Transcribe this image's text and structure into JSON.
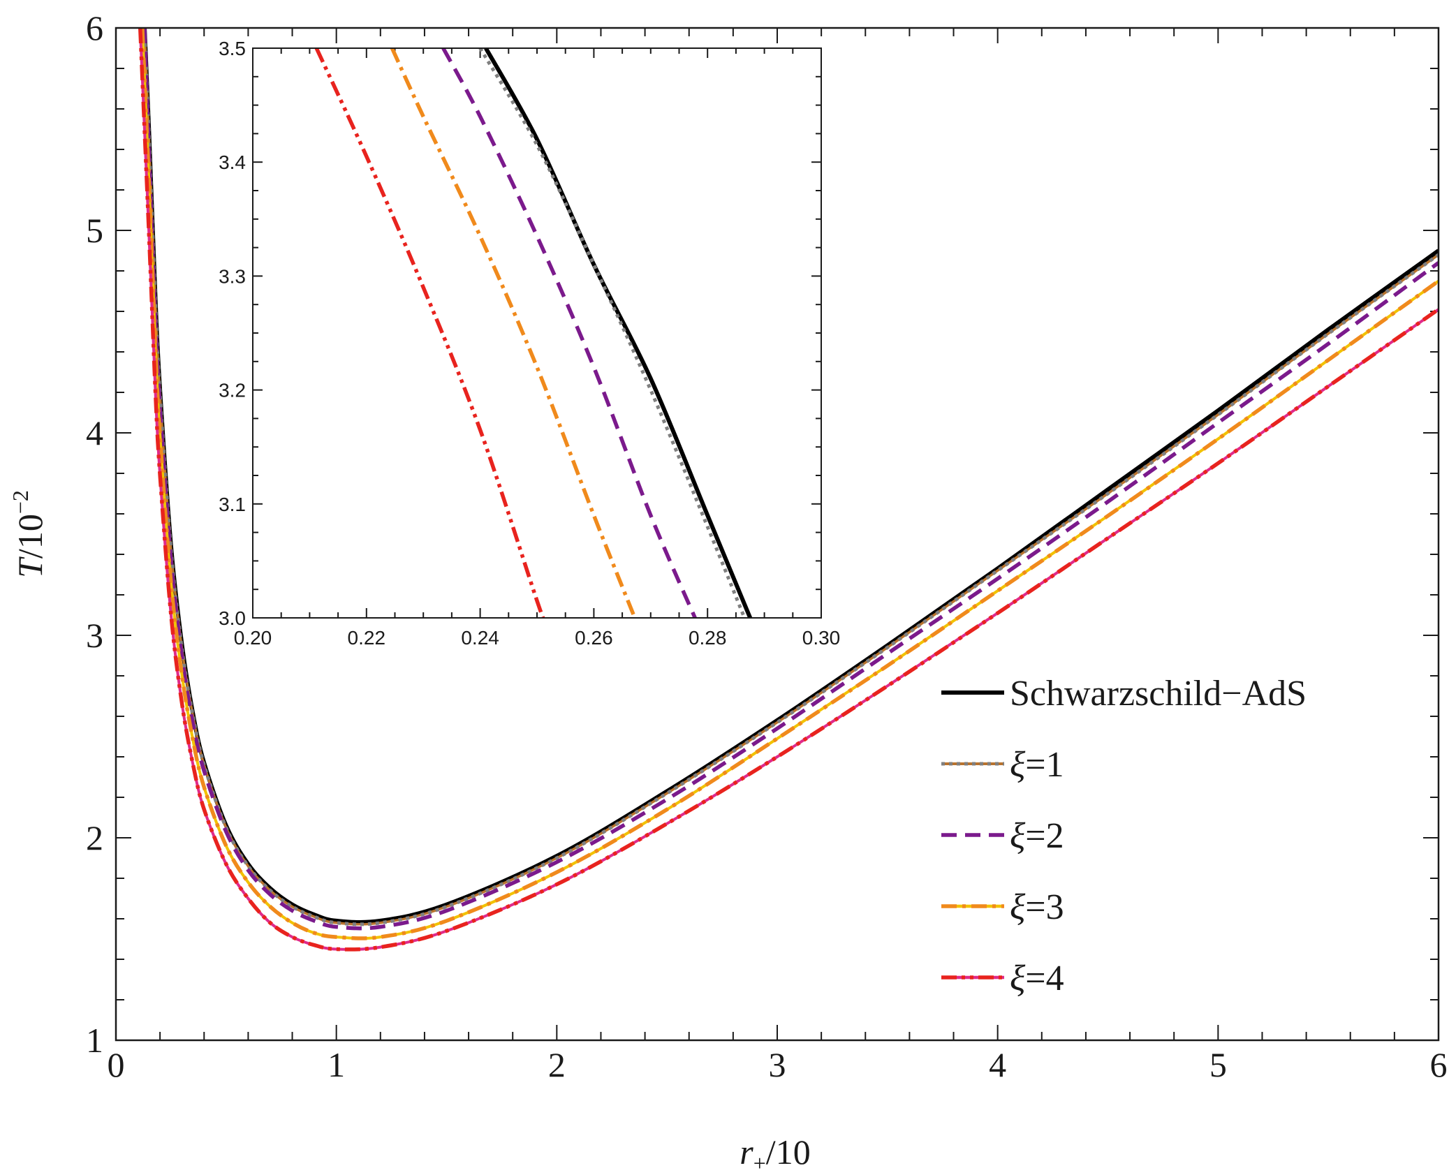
{
  "chart_data": [
    {
      "type": "line",
      "xlabel_var": "r",
      "xlabel_sub": "+",
      "xlabel_rest": "/10",
      "ylabel_var": "T",
      "ylabel_rest": "/10",
      "ylabel_exp": "−2",
      "xlim": [
        0,
        6
      ],
      "ylim": [
        1,
        6
      ],
      "xticks": [
        "0",
        "1",
        "2",
        "3",
        "4",
        "5",
        "6"
      ],
      "yticks": [
        "1",
        "2",
        "3",
        "4",
        "5",
        "6"
      ],
      "grid": false,
      "legend_position": "bottom-right",
      "series": [
        {
          "name": "Schwarzschild−AdS",
          "legend_prefix": "",
          "legend_value": "",
          "style": "solid",
          "color": "#000000",
          "x": [
            0.13,
            0.15,
            0.18,
            0.2,
            0.25,
            0.3,
            0.35,
            0.4,
            0.5,
            0.6,
            0.7,
            0.8,
            0.9,
            1.0,
            1.2,
            1.5,
            2.0,
            2.5,
            3.0,
            3.5,
            4.0,
            4.5,
            5.0,
            5.5,
            6.0
          ],
          "y": [
            6.0,
            5.49,
            4.64,
            4.21,
            3.44,
            2.95,
            2.61,
            2.37,
            2.06,
            1.87,
            1.75,
            1.67,
            1.62,
            1.59,
            1.59,
            1.67,
            1.91,
            2.23,
            2.58,
            2.95,
            3.33,
            3.72,
            4.11,
            4.51,
            4.9
          ]
        },
        {
          "name": "ξ=1",
          "legend_prefix": "ξ",
          "legend_value": "=1",
          "style": "dotted",
          "color": "#808080",
          "color2": "#b8732e",
          "x": [
            0.13,
            0.15,
            0.18,
            0.2,
            0.25,
            0.3,
            0.35,
            0.4,
            0.5,
            0.6,
            0.7,
            0.8,
            0.9,
            1.0,
            1.2,
            1.5,
            2.0,
            2.5,
            3.0,
            3.5,
            4.0,
            4.5,
            5.0,
            5.5,
            6.0
          ],
          "y": [
            6.0,
            5.46,
            4.62,
            4.19,
            3.42,
            2.93,
            2.6,
            2.36,
            2.05,
            1.86,
            1.74,
            1.66,
            1.61,
            1.58,
            1.58,
            1.66,
            1.9,
            2.22,
            2.57,
            2.94,
            3.32,
            3.7,
            4.09,
            4.49,
            4.88
          ]
        },
        {
          "name": "ξ=2",
          "legend_prefix": "ξ",
          "legend_value": "=2",
          "style": "dashed",
          "color": "#7b1a8c",
          "x": [
            0.13,
            0.15,
            0.18,
            0.2,
            0.25,
            0.3,
            0.35,
            0.4,
            0.5,
            0.6,
            0.7,
            0.8,
            0.9,
            1.0,
            1.2,
            1.5,
            2.0,
            2.5,
            3.0,
            3.5,
            4.0,
            4.5,
            5.0,
            5.5,
            6.0
          ],
          "y": [
            6.0,
            5.38,
            4.54,
            4.12,
            3.37,
            2.89,
            2.56,
            2.33,
            2.03,
            1.84,
            1.72,
            1.64,
            1.59,
            1.56,
            1.56,
            1.64,
            1.88,
            2.19,
            2.54,
            2.91,
            3.28,
            3.66,
            4.05,
            4.44,
            4.84
          ]
        },
        {
          "name": "ξ=3",
          "legend_prefix": "ξ",
          "legend_value": "=3",
          "style": "dashdot",
          "color": "#f08a1c",
          "color2": "#f2c200",
          "x": [
            0.12,
            0.15,
            0.18,
            0.2,
            0.25,
            0.3,
            0.35,
            0.4,
            0.5,
            0.6,
            0.7,
            0.8,
            0.9,
            1.0,
            1.2,
            1.5,
            2.0,
            2.5,
            3.0,
            3.5,
            4.0,
            4.5,
            5.0,
            5.5,
            6.0
          ],
          "y": [
            6.0,
            5.24,
            4.41,
            3.99,
            3.26,
            2.8,
            2.48,
            2.25,
            1.96,
            1.78,
            1.66,
            1.58,
            1.53,
            1.51,
            1.51,
            1.59,
            1.83,
            2.14,
            2.49,
            2.85,
            3.22,
            3.59,
            3.97,
            4.36,
            4.75
          ]
        },
        {
          "name": "ξ=4",
          "legend_prefix": "ξ",
          "legend_value": "=4",
          "style": "dashdotdot",
          "color": "#e8231e",
          "color2": "#e02b8a",
          "x": [
            0.11,
            0.15,
            0.18,
            0.2,
            0.25,
            0.3,
            0.35,
            0.4,
            0.5,
            0.6,
            0.7,
            0.8,
            0.9,
            1.0,
            1.2,
            1.5,
            2.0,
            2.5,
            3.0,
            3.5,
            4.0,
            4.5,
            5.0,
            5.5,
            6.0
          ],
          "y": [
            6.0,
            4.98,
            4.18,
            3.79,
            3.1,
            2.66,
            2.36,
            2.14,
            1.87,
            1.7,
            1.58,
            1.51,
            1.47,
            1.45,
            1.46,
            1.54,
            1.77,
            2.07,
            2.4,
            2.75,
            3.11,
            3.48,
            3.85,
            4.23,
            4.61
          ]
        }
      ]
    },
    {
      "type": "line",
      "role": "inset",
      "xlim": [
        0.2,
        0.3
      ],
      "ylim": [
        3.0,
        3.5
      ],
      "xticks": [
        "0.20",
        "0.22",
        "0.24",
        "0.26",
        "0.28",
        "0.30"
      ],
      "yticks": [
        "3.0",
        "3.1",
        "3.2",
        "3.3",
        "3.4",
        "3.5"
      ],
      "series": [
        {
          "name": "Schwarzschild−AdS",
          "style": "solid",
          "color": "#000000",
          "x": [
            0.241,
            0.25,
            0.26,
            0.27,
            0.28,
            0.2875
          ],
          "y": [
            3.5,
            3.42,
            3.31,
            3.21,
            3.09,
            3.0
          ]
        },
        {
          "name": "ξ=1",
          "style": "dotted",
          "color": "#808080",
          "x": [
            0.24,
            0.25,
            0.26,
            0.27,
            0.28,
            0.2865
          ],
          "y": [
            3.5,
            3.415,
            3.31,
            3.2,
            3.08,
            3.0
          ]
        },
        {
          "name": "ξ=2",
          "style": "dashed",
          "color": "#7b1a8c",
          "x": [
            0.2335,
            0.24,
            0.25,
            0.26,
            0.27,
            0.2778
          ],
          "y": [
            3.5,
            3.44,
            3.335,
            3.22,
            3.09,
            3.0
          ]
        },
        {
          "name": "ξ=3",
          "style": "dashdot",
          "color": "#f08a1c",
          "x": [
            0.2245,
            0.23,
            0.24,
            0.25,
            0.26,
            0.2672
          ],
          "y": [
            3.5,
            3.44,
            3.335,
            3.22,
            3.09,
            3.0
          ]
        },
        {
          "name": "ξ=4",
          "style": "dashdotdot",
          "color": "#e8231e",
          "x": [
            0.2112,
            0.22,
            0.23,
            0.24,
            0.25,
            0.2512
          ],
          "y": [
            3.5,
            3.405,
            3.29,
            3.165,
            3.015,
            3.0
          ]
        }
      ]
    }
  ]
}
